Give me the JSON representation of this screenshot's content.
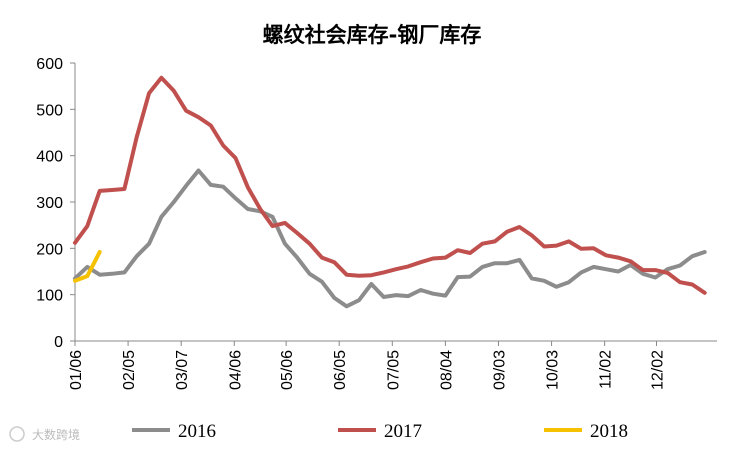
{
  "chart_data": {
    "type": "line",
    "title": "螺纹社会库存-钢厂库存",
    "xlabel": "",
    "ylabel": "",
    "ylim": [
      0,
      600
    ],
    "yticks": [
      0,
      100,
      200,
      300,
      400,
      500,
      600
    ],
    "xlim": [
      0,
      52
    ],
    "xtick_labels": [
      "01/06",
      "02/05",
      "03/07",
      "04/06",
      "05/06",
      "06/05",
      "07/05",
      "08/04",
      "09/03",
      "10/03",
      "11/02",
      "12/02"
    ],
    "xtick_positions": [
      0,
      4.3,
      8.6,
      12.9,
      17.1,
      21.4,
      25.7,
      30.0,
      34.3,
      38.6,
      42.9,
      47.1
    ],
    "legend_position": "bottom",
    "series": [
      {
        "name": "2016",
        "color": "#8c8c8c",
        "x": [
          0,
          1,
          2,
          3,
          4,
          5,
          6,
          7,
          8,
          9,
          10,
          11,
          12,
          13,
          14,
          15,
          16,
          17,
          18,
          19,
          20,
          21,
          22,
          23,
          24,
          25,
          26,
          27,
          28,
          29,
          30,
          31,
          32,
          33,
          34,
          35,
          36,
          37,
          38,
          39,
          40,
          41,
          42,
          43,
          44,
          45,
          46,
          47,
          48,
          49,
          50,
          51,
          52
        ],
        "values": [
          135,
          160,
          143,
          145,
          148,
          183,
          210,
          268,
          300,
          335,
          368,
          337,
          333,
          308,
          285,
          280,
          268,
          210,
          180,
          145,
          128,
          93,
          75,
          88,
          123,
          95,
          99,
          97,
          110,
          102,
          98,
          138,
          139,
          160,
          168,
          168,
          175,
          135,
          130,
          117,
          127,
          148,
          160,
          155,
          150,
          164,
          145,
          137,
          155,
          163,
          183,
          192,
          null
        ]
      },
      {
        "name": "2017",
        "color": "#c0504d",
        "x": [
          0,
          1,
          2,
          3,
          4,
          5,
          6,
          7,
          8,
          9,
          10,
          11,
          12,
          13,
          14,
          15,
          16,
          17,
          18,
          19,
          20,
          21,
          22,
          23,
          24,
          25,
          26,
          27,
          28,
          29,
          30,
          31,
          32,
          33,
          34,
          35,
          36,
          37,
          38,
          39,
          40,
          41,
          42,
          43,
          44,
          45,
          46,
          47,
          48,
          49,
          50,
          51,
          52
        ],
        "values": [
          212,
          248,
          324,
          326,
          328,
          440,
          535,
          568,
          540,
          497,
          483,
          465,
          422,
          395,
          332,
          285,
          248,
          255,
          233,
          210,
          180,
          170,
          143,
          141,
          142,
          148,
          155,
          161,
          170,
          178,
          180,
          196,
          190,
          210,
          215,
          236,
          246,
          228,
          204,
          206,
          215,
          199,
          200,
          185,
          180,
          172,
          153,
          153,
          147,
          127,
          122,
          104,
          null
        ]
      },
      {
        "name": "2018",
        "color": "#f5c100",
        "x": [
          0,
          1,
          2
        ],
        "values": [
          130,
          140,
          192
        ]
      }
    ]
  },
  "watermark": "大数跨境"
}
